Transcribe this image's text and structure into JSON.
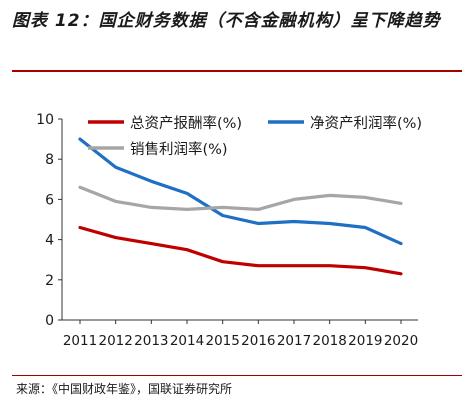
{
  "header": {
    "title": "图表 12：国企财务数据（不含金融机构）呈下降趋势"
  },
  "footer": {
    "source": "来源：《中国财政年鉴》，国联证券研究所"
  },
  "colors": {
    "accent_rule": "#a40000"
  },
  "chart_data": {
    "type": "line",
    "categories": [
      "2011",
      "2012",
      "2013",
      "2014",
      "2015",
      "2016",
      "2017",
      "2018",
      "2019",
      "2020"
    ],
    "ylim": [
      0,
      10
    ],
    "yticks": [
      "0",
      "2",
      "4",
      "6",
      "8",
      "10"
    ],
    "grid": false,
    "legend_position": "top-right",
    "series": [
      {
        "name": "总资产报酬率(%)",
        "color": "#c00000",
        "values": [
          4.6,
          4.1,
          3.8,
          3.5,
          2.9,
          2.7,
          2.7,
          2.7,
          2.6,
          2.3
        ]
      },
      {
        "name": "净资产利润率(%)",
        "color": "#1f6fc5",
        "values": [
          9.0,
          7.6,
          6.9,
          6.3,
          5.2,
          4.8,
          4.9,
          4.8,
          4.6,
          3.8
        ]
      },
      {
        "name": "销售利润率(%)",
        "color": "#a6a6a6",
        "values": [
          6.6,
          5.9,
          5.6,
          5.5,
          5.6,
          5.5,
          6.0,
          6.2,
          6.1,
          5.8
        ]
      }
    ]
  }
}
